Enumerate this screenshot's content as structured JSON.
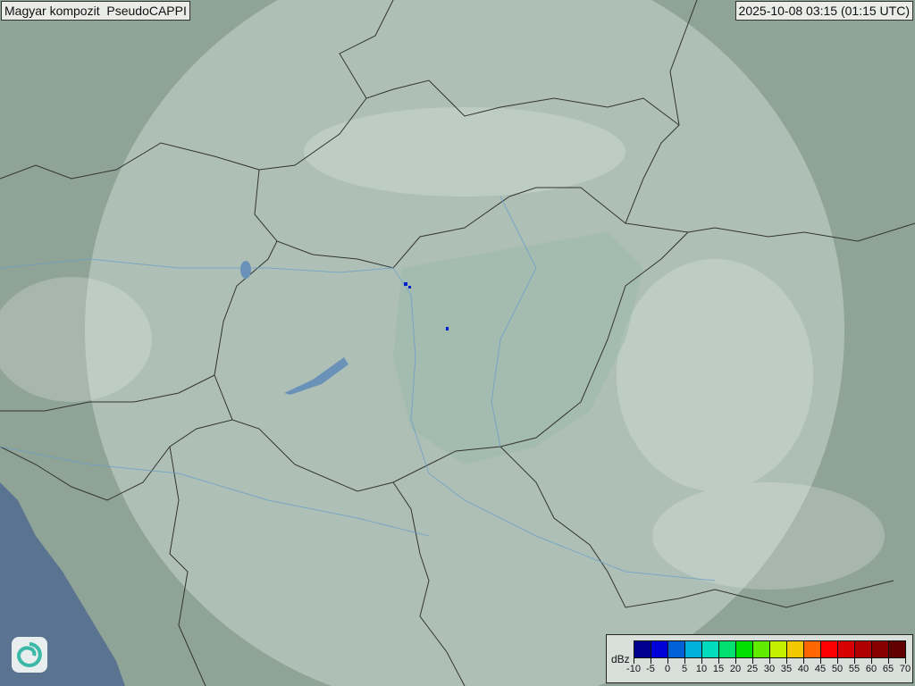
{
  "header": {
    "title": "Magyar kompozit  PseudoCAPPI",
    "timestamp": "2025-10-08 03:15 (01:15 UTC)"
  },
  "legend": {
    "unit": "dBz",
    "ticks": [
      "-10",
      "-5",
      "0",
      "5",
      "10",
      "15",
      "20",
      "25",
      "30",
      "35",
      "40",
      "45",
      "50",
      "55",
      "60",
      "65",
      "70"
    ],
    "colors": [
      "#000090",
      "#0000d8",
      "#0060d8",
      "#00b0dc",
      "#00dcbc",
      "#00e070",
      "#00e000",
      "#60ec00",
      "#c4f000",
      "#f4c800",
      "#ff6800",
      "#ff0000",
      "#d80000",
      "#b00000",
      "#880000",
      "#600000"
    ]
  },
  "map": {
    "land_color": "#8fa397",
    "coverage_color": "#c9d8d0",
    "sea_color": "#5a7390",
    "border_color": "#333333",
    "river_color": "#6f9fc8",
    "echo_color": "#0022cc"
  },
  "logo": {
    "icon": "swirl-logo-icon"
  }
}
